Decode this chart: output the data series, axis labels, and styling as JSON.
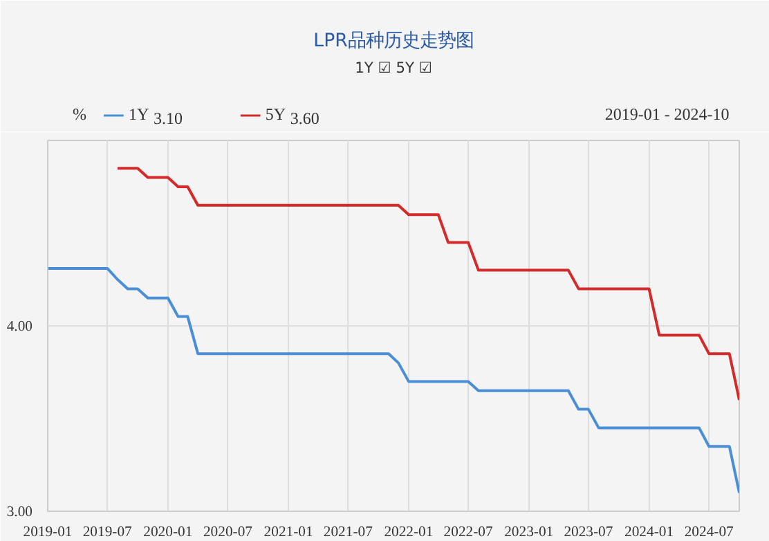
{
  "chart_data": {
    "type": "line",
    "title": "LPR品种历史走势图",
    "subtitle": "1Y ☑ 5Y ☑",
    "ylabel": "%",
    "annotations": [
      "3.10",
      "3.60",
      "2019-01 - 2024-10"
    ],
    "x": [
      "2019-01",
      "2019-02",
      "2019-03",
      "2019-04",
      "2019-05",
      "2019-06",
      "2019-07",
      "2019-08",
      "2019-09",
      "2019-10",
      "2019-11",
      "2019-12",
      "2020-01",
      "2020-02",
      "2020-03",
      "2020-04",
      "2020-05",
      "2020-06",
      "2020-07",
      "2020-08",
      "2020-09",
      "2020-10",
      "2020-11",
      "2020-12",
      "2021-01",
      "2021-02",
      "2021-03",
      "2021-04",
      "2021-05",
      "2021-06",
      "2021-07",
      "2021-08",
      "2021-09",
      "2021-10",
      "2021-11",
      "2021-12",
      "2022-01",
      "2022-02",
      "2022-03",
      "2022-04",
      "2022-05",
      "2022-06",
      "2022-07",
      "2022-08",
      "2022-09",
      "2022-10",
      "2022-11",
      "2022-12",
      "2023-01",
      "2023-02",
      "2023-03",
      "2023-04",
      "2023-05",
      "2023-06",
      "2023-07",
      "2023-08",
      "2023-09",
      "2023-10",
      "2023-11",
      "2023-12",
      "2024-01",
      "2024-02",
      "2024-03",
      "2024-04",
      "2024-05",
      "2024-06",
      "2024-07",
      "2024-08",
      "2024-09",
      "2024-10"
    ],
    "series": [
      {
        "name": "1Y",
        "color": "#4a8fd6",
        "values": [
          4.31,
          4.31,
          4.31,
          4.31,
          4.31,
          4.31,
          4.31,
          4.25,
          4.2,
          4.2,
          4.15,
          4.15,
          4.15,
          4.05,
          4.05,
          3.85,
          3.85,
          3.85,
          3.85,
          3.85,
          3.85,
          3.85,
          3.85,
          3.85,
          3.85,
          3.85,
          3.85,
          3.85,
          3.85,
          3.85,
          3.85,
          3.85,
          3.85,
          3.85,
          3.85,
          3.8,
          3.7,
          3.7,
          3.7,
          3.7,
          3.7,
          3.7,
          3.7,
          3.65,
          3.65,
          3.65,
          3.65,
          3.65,
          3.65,
          3.65,
          3.65,
          3.65,
          3.65,
          3.55,
          3.55,
          3.45,
          3.45,
          3.45,
          3.45,
          3.45,
          3.45,
          3.45,
          3.45,
          3.45,
          3.45,
          3.45,
          3.35,
          3.35,
          3.35,
          3.1
        ]
      },
      {
        "name": "5Y",
        "color": "#d42a2a",
        "values": [
          null,
          null,
          null,
          null,
          null,
          null,
          null,
          4.85,
          4.85,
          4.85,
          4.8,
          4.8,
          4.8,
          4.75,
          4.75,
          4.65,
          4.65,
          4.65,
          4.65,
          4.65,
          4.65,
          4.65,
          4.65,
          4.65,
          4.65,
          4.65,
          4.65,
          4.65,
          4.65,
          4.65,
          4.65,
          4.65,
          4.65,
          4.65,
          4.65,
          4.65,
          4.6,
          4.6,
          4.6,
          4.6,
          4.45,
          4.45,
          4.45,
          4.3,
          4.3,
          4.3,
          4.3,
          4.3,
          4.3,
          4.3,
          4.3,
          4.3,
          4.3,
          4.2,
          4.2,
          4.2,
          4.2,
          4.2,
          4.2,
          4.2,
          4.2,
          3.95,
          3.95,
          3.95,
          3.95,
          3.95,
          3.85,
          3.85,
          3.85,
          3.6
        ]
      }
    ],
    "xlim": [
      "2019-01",
      "2024-10"
    ],
    "xticks": [
      "2019-01",
      "2019-07",
      "2020-01",
      "2020-07",
      "2021-01",
      "2021-07",
      "2022-01",
      "2022-07",
      "2023-01",
      "2023-07",
      "2024-01",
      "2024-07"
    ],
    "ylim": [
      3,
      5
    ],
    "yticks": [
      {
        "value": 3,
        "label": "3.00"
      },
      {
        "value": 4,
        "label": "4.00"
      }
    ],
    "grid": true,
    "legend": "top left"
  }
}
